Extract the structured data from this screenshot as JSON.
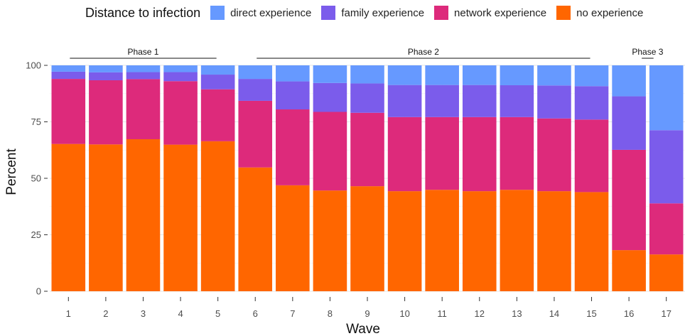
{
  "chart_data": {
    "type": "bar",
    "stacked": true,
    "xlabel": "Wave",
    "ylabel": "Percent",
    "ylim": [
      0,
      100
    ],
    "yticks": [
      0,
      25,
      50,
      75,
      100
    ],
    "grid": true,
    "legend": {
      "title": "Distance to infection",
      "position": "top"
    },
    "categories": [
      "1",
      "2",
      "3",
      "4",
      "5",
      "6",
      "7",
      "8",
      "9",
      "10",
      "11",
      "12",
      "13",
      "14",
      "15",
      "16",
      "17"
    ],
    "series": [
      {
        "name": "no experience",
        "color": "#FF6600",
        "values": [
          65.2,
          65.0,
          67.3,
          64.9,
          66.4,
          54.8,
          46.9,
          44.6,
          46.5,
          44.3,
          44.9,
          44.3,
          44.9,
          44.3,
          43.9,
          18.2,
          16.3
        ]
      },
      {
        "name": "network experience",
        "color": "#DD2A7B",
        "values": [
          28.8,
          28.4,
          26.6,
          28.1,
          23.0,
          29.5,
          33.6,
          34.8,
          32.5,
          32.8,
          32.2,
          32.8,
          32.2,
          32.2,
          32.1,
          44.4,
          22.6
        ]
      },
      {
        "name": "family experience",
        "color": "#7B5CEB",
        "values": [
          3.2,
          3.5,
          3.1,
          4.0,
          6.5,
          9.7,
          12.4,
          12.8,
          13.0,
          14.2,
          14.2,
          14.2,
          14.1,
          14.6,
          14.8,
          23.7,
          32.4
        ]
      },
      {
        "name": "direct experience",
        "color": "#6699FF",
        "values": [
          2.8,
          3.1,
          3.0,
          3.0,
          4.1,
          6.0,
          7.1,
          7.8,
          8.0,
          8.7,
          8.7,
          8.7,
          8.8,
          8.9,
          9.2,
          13.7,
          28.7
        ]
      }
    ],
    "legend_order": [
      "direct experience",
      "family experience",
      "network experience",
      "no experience"
    ],
    "phases": [
      {
        "label": "Phase 1",
        "from": "1",
        "to": "5"
      },
      {
        "label": "Phase 2",
        "from": "6",
        "to": "15"
      },
      {
        "label": "Phase 3",
        "from": "16",
        "to": "17"
      }
    ]
  }
}
